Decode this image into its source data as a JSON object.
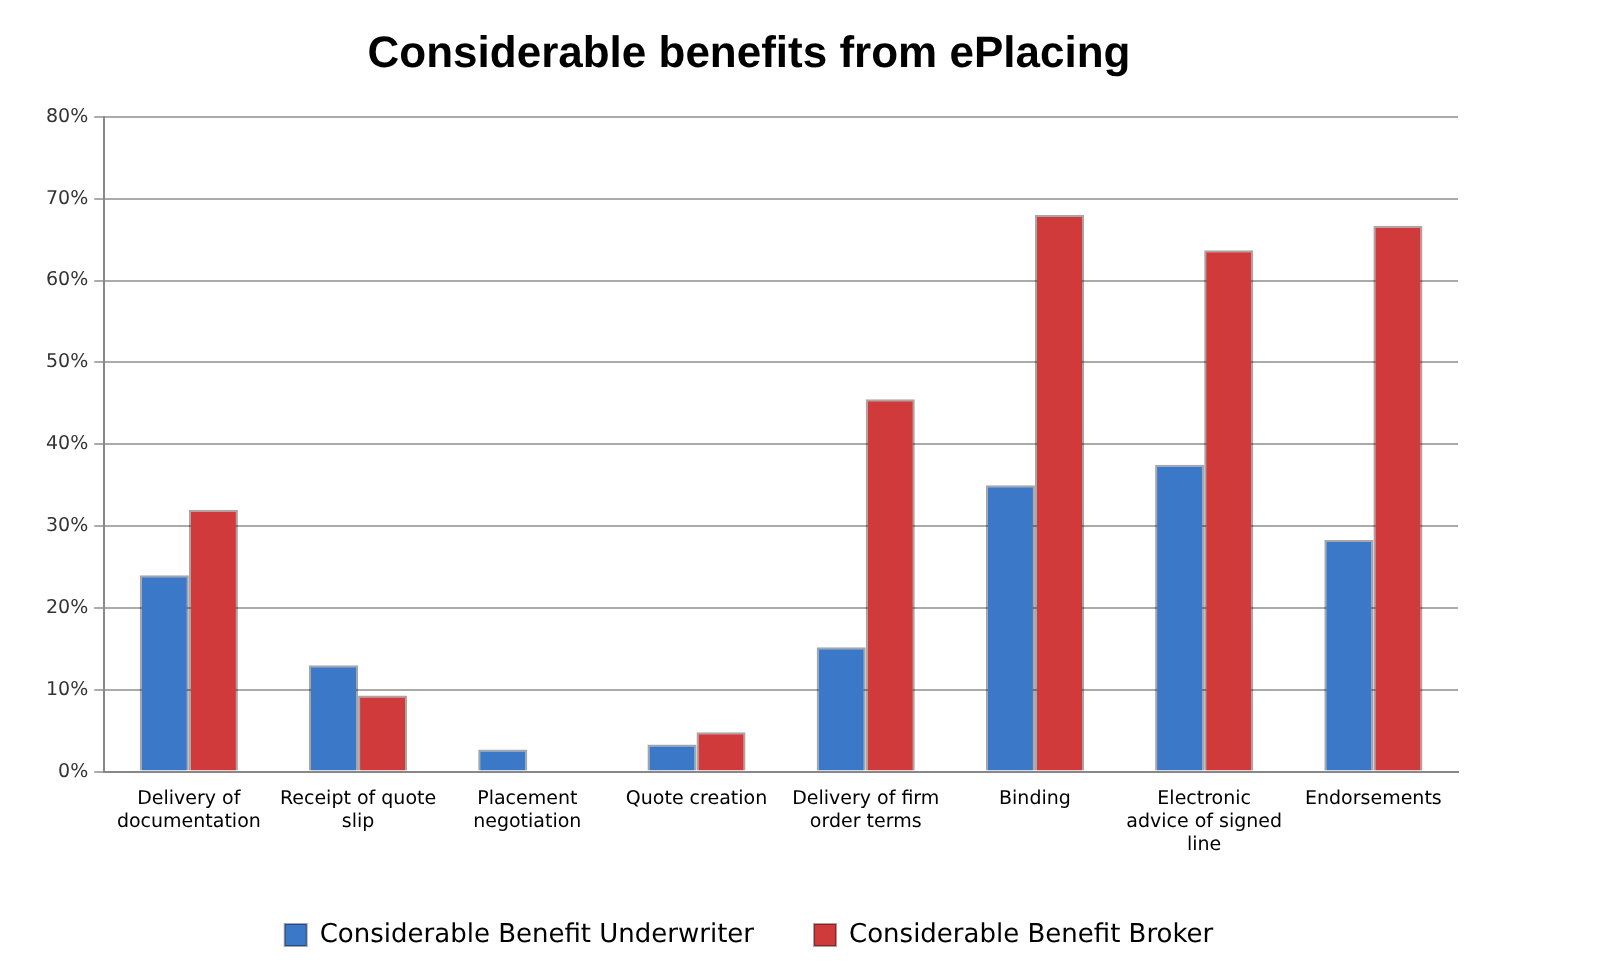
{
  "chart_data": {
    "type": "bar",
    "title": "Considerable benefits from ePlacing",
    "categories": [
      "Delivery of documentation",
      "Receipt of quote slip",
      "Placement negotiation",
      "Quote creation",
      "Delivery of firm order terms",
      "Binding",
      "Electronic advice of signed line",
      "Endorsements"
    ],
    "series": [
      {
        "name": "Considerable Benefit Underwriter",
        "color": "#3b78c8",
        "values": [
          24,
          13,
          2.7,
          3.3,
          15.2,
          35,
          37.5,
          28.3
        ]
      },
      {
        "name": "Considerable Benefit Broker",
        "color": "#d03a3a",
        "values": [
          32,
          9.3,
          0,
          4.8,
          45.5,
          68,
          63.7,
          66.7
        ]
      }
    ],
    "ylim": [
      0,
      80
    ],
    "yticks": [
      {
        "value": 0,
        "label": "0%"
      },
      {
        "value": 10,
        "label": "10%"
      },
      {
        "value": 20,
        "label": "20%"
      },
      {
        "value": 30,
        "label": "30%"
      },
      {
        "value": 40,
        "label": "40%"
      },
      {
        "value": 50,
        "label": "50%"
      },
      {
        "value": 60,
        "label": "60%"
      },
      {
        "value": 70,
        "label": "70%"
      },
      {
        "value": 80,
        "label": "80%"
      }
    ],
    "grid": "y",
    "legend": "bottom"
  }
}
